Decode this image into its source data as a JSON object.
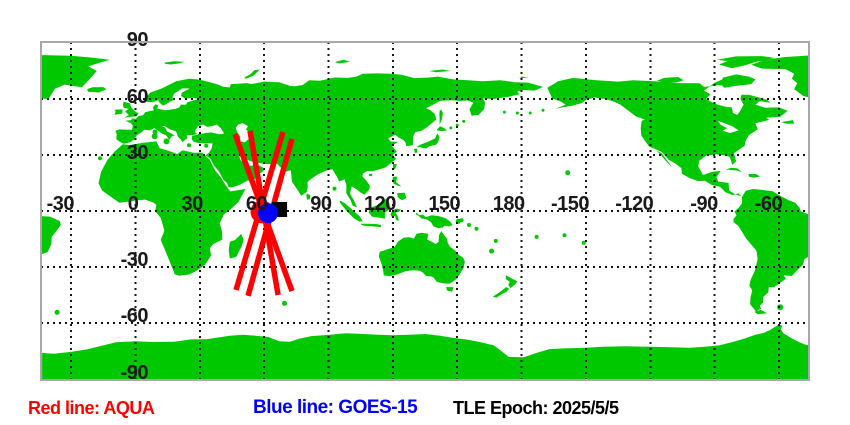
{
  "map": {
    "background_color": "#ffffff",
    "land_color": "#00c800",
    "water_color": "#ffffff",
    "border_color": "#a8a8a8",
    "grid_color": "#151515",
    "tick_label_color": "#1a1a1a",
    "lat_ticks": [
      {
        "label": "90",
        "value": 90
      },
      {
        "label": "60",
        "value": 60
      },
      {
        "label": "30",
        "value": 30
      },
      {
        "label": "-30",
        "value": -30
      },
      {
        "label": "-60",
        "value": -60
      },
      {
        "label": "-90",
        "value": -90
      }
    ],
    "lon_ticks": [
      {
        "label": "-30",
        "value": -30
      },
      {
        "label": "0",
        "value": 0
      },
      {
        "label": "30",
        "value": 30
      },
      {
        "label": "60",
        "value": 60
      },
      {
        "label": "90",
        "value": 90
      },
      {
        "label": "120",
        "value": 120
      },
      {
        "label": "150",
        "value": 150
      },
      {
        "label": "180",
        "value": 180
      },
      {
        "label": "-150",
        "value": 210
      },
      {
        "label": "-120",
        "value": 240
      },
      {
        "label": "-90",
        "value": 270
      },
      {
        "label": "-60",
        "value": 300
      }
    ],
    "grid_lat_lines": [
      60,
      30,
      0,
      -30,
      -60
    ]
  },
  "tracks": {
    "aqua": {
      "satellite": "AQUA",
      "color": "#ff0000",
      "stroke_width": 5.5,
      "segments_lonlat": [
        [
          [
            46.4,
            41.3
          ],
          [
            73.0,
            -42.9
          ]
        ],
        [
          [
            53.4,
            42.9
          ],
          [
            66.5,
            -45.0
          ]
        ],
        [
          [
            68.8,
            42.3
          ],
          [
            46.9,
            -42.3
          ]
        ],
        [
          [
            73.0,
            38.6
          ],
          [
            52.5,
            -45.5
          ]
        ]
      ]
    },
    "goes15": {
      "satellite": "GOES-15",
      "color": "#0000ff"
    }
  },
  "markers": [
    {
      "id": "aqua-position-marker",
      "shape": "circle",
      "color": "#ff0000",
      "lon": 59.0,
      "lat": -0.5,
      "radius": 11.5
    },
    {
      "id": "subpoint-square-marker",
      "shape": "square",
      "color": "#000000",
      "lon": 67.2,
      "lat": 0.8,
      "size": 15
    },
    {
      "id": "goes15-position-marker",
      "shape": "circle",
      "color": "#0000ff",
      "lon": 61.8,
      "lat": -1.1,
      "radius": 10
    }
  ],
  "legend": {
    "red": {
      "text": "Red line: AQUA",
      "color": "#ff0000"
    },
    "blue": {
      "text": "Blue line: GOES-15",
      "color": "#0000ff"
    },
    "epoch": {
      "text": "TLE Epoch: 2025/5/5",
      "color": "#000000"
    }
  }
}
